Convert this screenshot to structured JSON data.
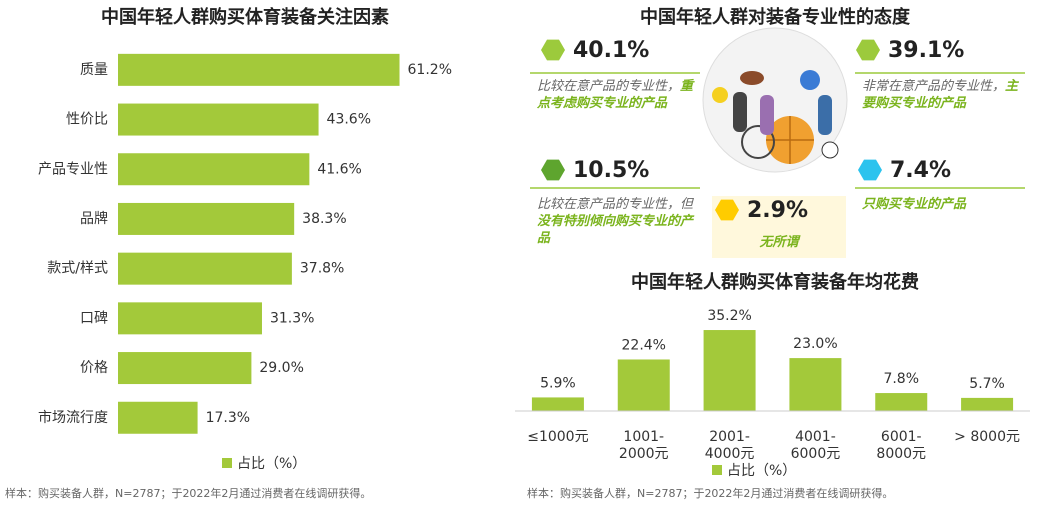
{
  "chart_data": [
    {
      "type": "hbar",
      "title": "中国年轻人群购买体育装备关注因素",
      "categories": [
        "质量",
        "性价比",
        "产品专业性",
        "品牌",
        "款式/样式",
        "口碑",
        "价格",
        "市场流行度"
      ],
      "values": [
        61.2,
        43.6,
        41.6,
        38.3,
        37.8,
        31.3,
        29.0,
        17.3
      ],
      "value_labels": [
        "61.2%",
        "43.6%",
        "41.6%",
        "38.3%",
        "37.8%",
        "31.3%",
        "29.0%",
        "17.3%"
      ],
      "series_name": "占比（%）",
      "color": "#a3c93a",
      "xlim": [
        0,
        70
      ],
      "note": "样本：购买装备人群，N=2787；于2022年2月通过消费者在线调研获得。"
    },
    {
      "type": "bar",
      "title": "中国年轻人群购买体育装备年均花费",
      "categories": [
        "≤1000元",
        "1001-\n2000元",
        "2001-\n4000元",
        "4001-\n6000元",
        "6001-\n8000元",
        "> 8000元"
      ],
      "values": [
        5.9,
        22.4,
        35.2,
        23.0,
        7.8,
        5.7
      ],
      "value_labels": [
        "5.9%",
        "22.4%",
        "35.2%",
        "23.0%",
        "7.8%",
        "5.7%"
      ],
      "series_name": "占比（%）",
      "color": "#a3c93a",
      "ylim": [
        0,
        40
      ],
      "note": "样本：购买装备人群，N=2787；于2022年2月通过消费者在线调研获得。"
    }
  ],
  "attitude": {
    "title": "中国年轻人群对装备专业性的态度",
    "items": [
      {
        "value": 40.1,
        "value_label": "40.1%",
        "color": "#9cca3c",
        "text": [
          "比较在意产品的专业性，",
          "重点考虑购买专业的产品"
        ]
      },
      {
        "value": 39.1,
        "value_label": "39.1%",
        "color": "#9cca3c",
        "text": [
          "非常在意产品的专业性，",
          "主要购买专业的产品"
        ]
      },
      {
        "value": 10.5,
        "value_label": "10.5%",
        "color": "#5ea52e",
        "text": [
          "比较在意产品的专业性，但",
          "没有特别倾向购买专业的产品"
        ]
      },
      {
        "value": 7.4,
        "value_label": "7.4%",
        "color": "#2cc3ee",
        "text": [
          "只购买专业的产品"
        ]
      },
      {
        "value": 2.9,
        "value_label": "2.9%",
        "color": "#ffcc00",
        "text": [
          "无所谓"
        ]
      }
    ]
  }
}
